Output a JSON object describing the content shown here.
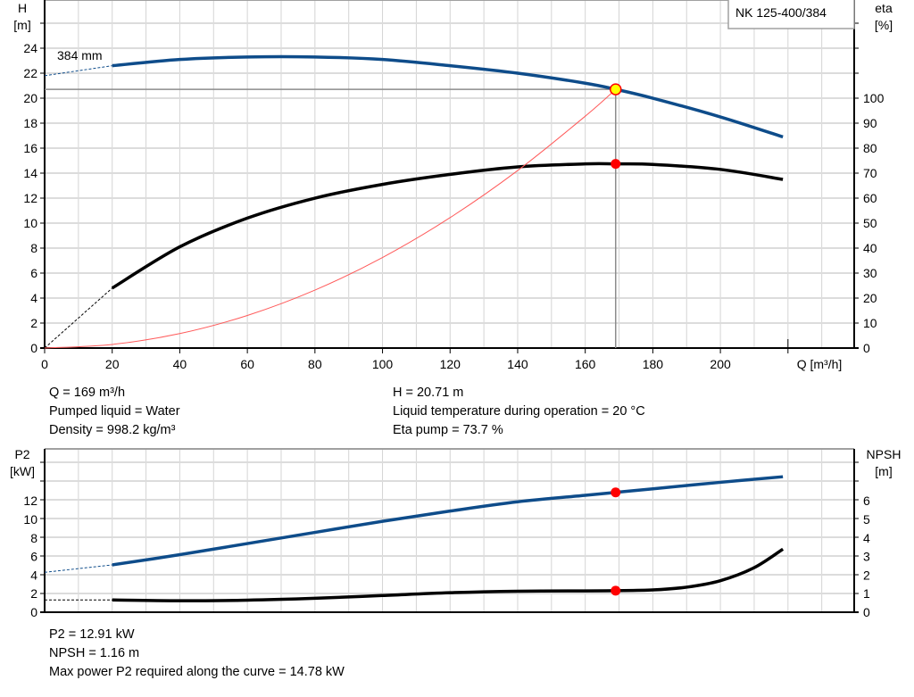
{
  "chart_data": [
    {
      "type": "line",
      "title": "NK 125-400/384",
      "xlabel": "Q [m³/h]",
      "ylabel": [
        "H",
        "[m]"
      ],
      "y2label": [
        "eta",
        "[%]"
      ],
      "xlim": [
        0,
        239.6
      ],
      "ylim": [
        0,
        27.86
      ],
      "y2lim": [
        0,
        139.3
      ],
      "xticks": [
        0,
        20,
        40,
        60,
        80,
        100,
        120,
        140,
        160,
        180,
        200
      ],
      "yticks": [
        0,
        2,
        4,
        6,
        8,
        10,
        12,
        14,
        16,
        18,
        20,
        22,
        24
      ],
      "y2ticks": [
        0,
        10,
        20,
        30,
        40,
        50,
        60,
        70,
        80,
        90,
        100
      ],
      "grid": true,
      "curve_label": "384 mm",
      "colors": {
        "head": "#0e4c8a",
        "eta": "#000000",
        "system": "#ff5a5a",
        "duty_point": "#ff0000",
        "duty_fill": "#ffff00",
        "cursor": "#8c8c8c"
      },
      "series": [
        {
          "key": "head",
          "axis": "left",
          "extrapolated": [
            [
              0,
              21.8
            ],
            [
              20,
              22.6
            ]
          ],
          "points": [
            [
              20,
              22.6
            ],
            [
              40,
              23.1
            ],
            [
              60,
              23.3
            ],
            [
              80,
              23.3
            ],
            [
              100,
              23.1
            ],
            [
              120,
              22.6
            ],
            [
              140,
              22.0
            ],
            [
              160,
              21.2
            ],
            [
              169,
              20.71
            ],
            [
              180,
              20.0
            ],
            [
              200,
              18.5
            ],
            [
              218.5,
              16.9
            ]
          ]
        },
        {
          "key": "eta",
          "axis": "right",
          "extrapolated": [
            [
              0,
              0
            ],
            [
              20,
              24
            ]
          ],
          "points": [
            [
              20,
              24
            ],
            [
              40,
              40.5
            ],
            [
              60,
              52
            ],
            [
              80,
              60
            ],
            [
              100,
              65.5
            ],
            [
              120,
              69.5
            ],
            [
              140,
              72.5
            ],
            [
              160,
              73.7
            ],
            [
              169,
              73.7
            ],
            [
              180,
              73.5
            ],
            [
              200,
              71.5
            ],
            [
              218.5,
              67.5
            ]
          ]
        },
        {
          "key": "system",
          "axis": "left",
          "points": [
            [
              0,
              0
            ],
            [
              20,
              0.29
            ],
            [
              40,
              1.16
            ],
            [
              60,
              2.61
            ],
            [
              80,
              4.64
            ],
            [
              100,
              7.25
            ],
            [
              120,
              10.44
            ],
            [
              140,
              14.21
            ],
            [
              160,
              18.56
            ],
            [
              169,
              20.71
            ]
          ]
        }
      ],
      "duty_point": {
        "Q": 169,
        "H": 20.71,
        "eta": 73.7
      }
    },
    {
      "type": "line",
      "ylabel": [
        "P2",
        "[kW]"
      ],
      "y2label": [
        "NPSH",
        "[m]"
      ],
      "xlim": [
        0,
        239.6
      ],
      "ylim": [
        0,
        17.6
      ],
      "y2lim": [
        0,
        8.8
      ],
      "yticks": [
        0,
        2,
        4,
        6,
        8,
        10,
        12
      ],
      "y2ticks": [
        0,
        1,
        2,
        3,
        4,
        5,
        6
      ],
      "grid": true,
      "colors": {
        "p2": "#0e4c8a",
        "npsh": "#000000",
        "duty_point": "#ff0000"
      },
      "series": [
        {
          "key": "p2",
          "axis": "left",
          "extrapolated": [
            [
              0,
              4.3
            ],
            [
              20,
              5.1
            ]
          ],
          "points": [
            [
              20,
              5.1
            ],
            [
              40,
              6.2
            ],
            [
              60,
              7.4
            ],
            [
              80,
              8.6
            ],
            [
              100,
              9.8
            ],
            [
              120,
              10.9
            ],
            [
              140,
              11.9
            ],
            [
              160,
              12.6
            ],
            [
              169,
              12.91
            ],
            [
              180,
              13.3
            ],
            [
              200,
              14.0
            ],
            [
              218.5,
              14.6
            ]
          ]
        },
        {
          "key": "npsh",
          "axis": "right",
          "extrapolated": [
            [
              0,
              0.66
            ],
            [
              20,
              0.66
            ]
          ],
          "points": [
            [
              20,
              0.66
            ],
            [
              40,
              0.62
            ],
            [
              60,
              0.65
            ],
            [
              80,
              0.75
            ],
            [
              100,
              0.9
            ],
            [
              120,
              1.05
            ],
            [
              140,
              1.13
            ],
            [
              160,
              1.15
            ],
            [
              169,
              1.16
            ],
            [
              180,
              1.2
            ],
            [
              190,
              1.35
            ],
            [
              200,
              1.7
            ],
            [
              210,
              2.4
            ],
            [
              218.5,
              3.4
            ]
          ]
        }
      ],
      "duty_point": {
        "Q": 169,
        "P2": 12.91,
        "NPSH": 1.16
      }
    }
  ],
  "info_top": {
    "q": "Q = 169 m³/h",
    "liquid": "Pumped liquid = Water",
    "density": "Density = 998.2 kg/m³",
    "h": "H = 20.71 m",
    "temp": "Liquid temperature during operation = 20 °C",
    "eta": "Eta pump = 73.7 %"
  },
  "info_bottom": {
    "p2": "P2 = 12.91 kW",
    "npsh": "NPSH = 1.16 m",
    "max_p2": "Max power P2 required along the curve = 14.78 kW"
  }
}
